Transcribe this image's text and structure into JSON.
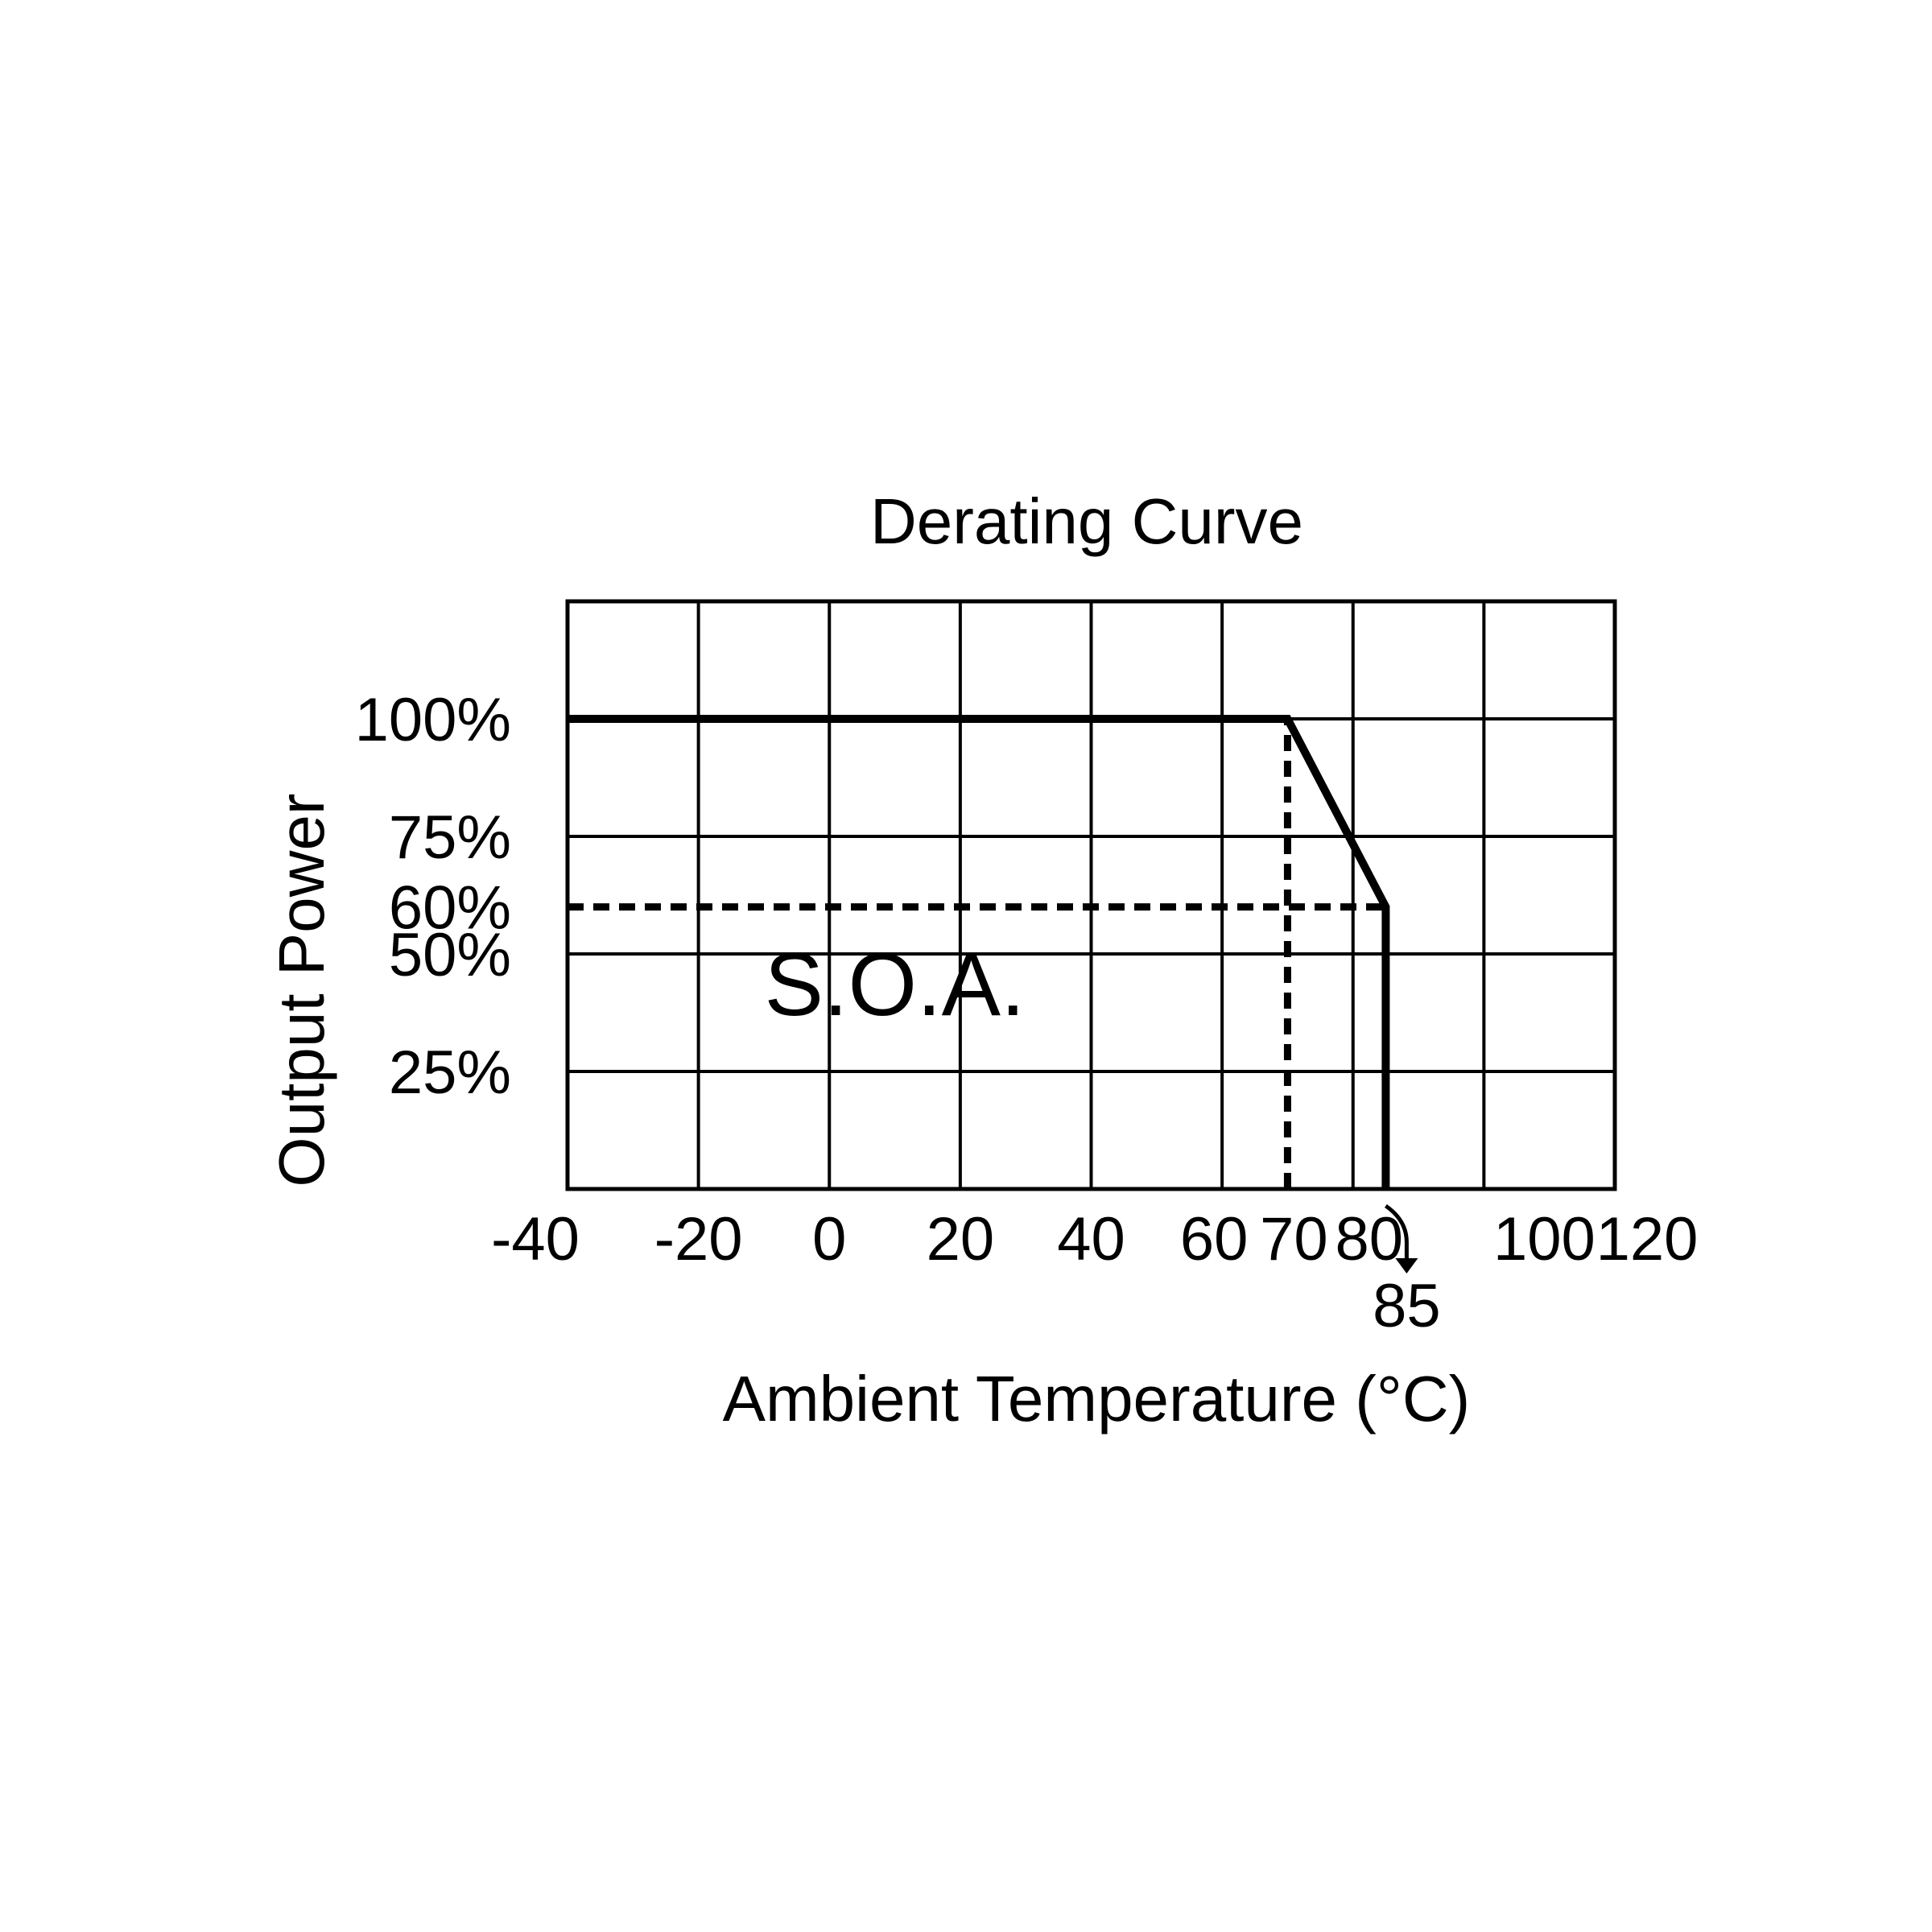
{
  "chart_data": {
    "type": "line",
    "title": "Derating Curve",
    "xlabel": "Ambient Temperature (°C)",
    "ylabel": "Output Power",
    "xlim": [
      -40,
      120
    ],
    "ylim": [
      0,
      125
    ],
    "grid": true,
    "x_ticks": [
      {
        "value": -40,
        "label": "-40"
      },
      {
        "value": -20,
        "label": "-20"
      },
      {
        "value": 0,
        "label": "0"
      },
      {
        "value": 20,
        "label": "20"
      },
      {
        "value": 40,
        "label": "40"
      },
      {
        "value": 60,
        "label": "60"
      },
      {
        "value": 70,
        "label": "70"
      },
      {
        "value": 80,
        "label": "80"
      },
      {
        "value": 100,
        "label": "100"
      },
      {
        "value": 120,
        "label": "120"
      }
    ],
    "y_ticks": [
      {
        "value": 100,
        "label": "100%"
      },
      {
        "value": 75,
        "label": "75%"
      },
      {
        "value": 60,
        "label": "60%"
      },
      {
        "value": 50,
        "label": "50%"
      },
      {
        "value": 25,
        "label": "25%"
      }
    ],
    "series": [
      {
        "x": [
          -40,
          70,
          85,
          85
        ],
        "y": [
          100,
          100,
          60,
          0
        ]
      }
    ],
    "reference_lines": [
      {
        "x": [
          -40,
          85
        ],
        "y": [
          60,
          60
        ],
        "style": "dashed"
      },
      {
        "x": [
          70,
          70
        ],
        "y": [
          0,
          100
        ],
        "style": "dashed"
      }
    ],
    "annotations": [
      {
        "text": "S.O.A.",
        "x": 10,
        "y": 37
      },
      {
        "text": "85",
        "x": 85
      }
    ],
    "colors": {
      "line": "#000000",
      "grid": "#000000",
      "background": "#ffffff"
    }
  }
}
